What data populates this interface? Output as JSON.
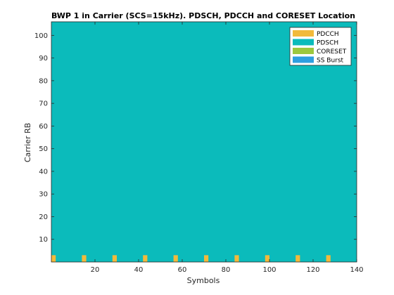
{
  "chart_data": {
    "type": "area",
    "title": "BWP 1 in Carrier (SCS=15kHz). PDSCH, PDCCH and CORESET Location",
    "xlabel": "Symbols",
    "ylabel": "Carrier RB",
    "xlim": [
      0,
      140
    ],
    "ylim": [
      0,
      106
    ],
    "xticks": [
      "20",
      "40",
      "60",
      "80",
      "100",
      "120",
      "140"
    ],
    "yticks": [
      "10",
      "20",
      "30",
      "40",
      "50",
      "60",
      "70",
      "80",
      "90",
      "100"
    ],
    "legend_position": "top-right",
    "legend": [
      "PDCCH",
      "PDSCH",
      "CORESET",
      "SS Burst"
    ],
    "colors": {
      "PDCCH": "#F2BA3B",
      "PDSCH": "#0BBBBB",
      "CORESET": "#9DC83E",
      "SS Burst": "#2E9FE0"
    },
    "series": [
      {
        "name": "PDSCH",
        "regions": [
          {
            "x": [
              0,
              140
            ],
            "y": [
              0,
              106
            ]
          }
        ]
      },
      {
        "name": "PDCCH",
        "regions": [
          {
            "x": [
              0,
              2
            ],
            "y": [
              0,
              3
            ]
          },
          {
            "x": [
              14,
              16
            ],
            "y": [
              0,
              3
            ]
          },
          {
            "x": [
              28,
              30
            ],
            "y": [
              0,
              3
            ]
          },
          {
            "x": [
              42,
              44
            ],
            "y": [
              0,
              3
            ]
          },
          {
            "x": [
              56,
              58
            ],
            "y": [
              0,
              3
            ]
          },
          {
            "x": [
              70,
              72
            ],
            "y": [
              0,
              3
            ]
          },
          {
            "x": [
              84,
              86
            ],
            "y": [
              0,
              3
            ]
          },
          {
            "x": [
              98,
              100
            ],
            "y": [
              0,
              3
            ]
          },
          {
            "x": [
              112,
              114
            ],
            "y": [
              0,
              3
            ]
          },
          {
            "x": [
              126,
              128
            ],
            "y": [
              0,
              3
            ]
          }
        ]
      }
    ]
  }
}
